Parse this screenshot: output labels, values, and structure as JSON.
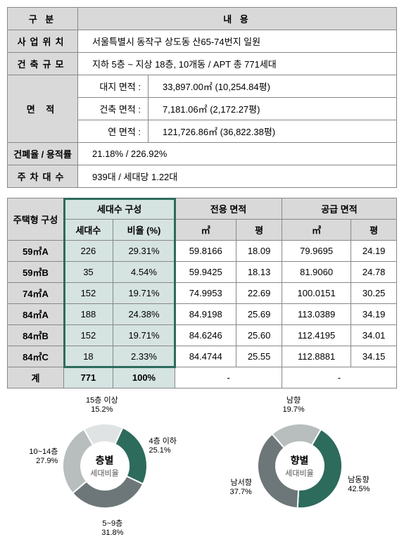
{
  "info": {
    "header_left": "구  분",
    "header_right": "내  용",
    "rows": {
      "r1_label": "사업위치",
      "r1_value": "서울특별시 동작구 상도동 산65-74번지 일원",
      "r2_label": "건축규모",
      "r2_value": "지하 5층 ~ 지상 18층, 10개동 / APT 총 771세대",
      "r3_label": "면    적",
      "r3a_sub": "대지 면적 :",
      "r3a_val": "33,897.00㎡    (10,254.84평)",
      "r3b_sub": "건축 면적 :",
      "r3b_val": "7,181.06㎡     (2,172.27평)",
      "r3c_sub": "연 면적 :",
      "r3c_val": "121,726.86㎡    (36,822.38평)",
      "r4_label": "건폐율 / 용적률",
      "r4_value": "21.18% / 226.92%",
      "r5_label": "주차대수",
      "r5_value": "939대 / 세대당 1.22대"
    }
  },
  "typeTable": {
    "title": "주택형\n구성",
    "headers": {
      "g1": "세대수 구성",
      "g2": "전용 면적",
      "g3": "공급 면적",
      "c1": "세대수",
      "c2": "비율 (%)",
      "c3": "㎡",
      "c4": "평",
      "c5": "㎡",
      "c6": "평"
    },
    "rows": [
      {
        "label": "59㎡A",
        "count": "226",
        "ratio": "29.31%",
        "em": "59.8166",
        "ep": "18.09",
        "sm": "79.9695",
        "sp": "24.19"
      },
      {
        "label": "59㎡B",
        "count": "35",
        "ratio": "4.54%",
        "em": "59.9425",
        "ep": "18.13",
        "sm": "81.9060",
        "sp": "24.78"
      },
      {
        "label": "74㎡A",
        "count": "152",
        "ratio": "19.71%",
        "em": "74.9953",
        "ep": "22.69",
        "sm": "100.0151",
        "sp": "30.25"
      },
      {
        "label": "84㎡A",
        "count": "188",
        "ratio": "24.38%",
        "em": "84.9198",
        "ep": "25.69",
        "sm": "113.0389",
        "sp": "34.19"
      },
      {
        "label": "84㎡B",
        "count": "152",
        "ratio": "19.71%",
        "em": "84.6246",
        "ep": "25.60",
        "sm": "112.4195",
        "sp": "34.01"
      },
      {
        "label": "84㎡C",
        "count": "18",
        "ratio": "2.33%",
        "em": "84.4744",
        "ep": "25.55",
        "sm": "112.8881",
        "sp": "34.15"
      }
    ],
    "totals": {
      "label": "계",
      "count": "771",
      "ratio": "100%",
      "dash": "-"
    }
  },
  "charts": {
    "floor": {
      "title": "층별",
      "sub": "세대비율",
      "segments": [
        {
          "label": "4층 이하",
          "value": 25.1,
          "color": "#2d6b5c",
          "labelText": "4층 이하\n25.1%"
        },
        {
          "label": "5~9층",
          "value": 31.8,
          "color": "#6d7679",
          "labelText": "5~9층\n31.8%"
        },
        {
          "label": "10~14층",
          "value": 27.9,
          "color": "#b8bdbe",
          "labelText": "10~14층\n27.9%"
        },
        {
          "label": "15층 이상",
          "value": 15.2,
          "color": "#e0e3e4",
          "labelText": "15층 이상\n15.2%"
        }
      ]
    },
    "direction": {
      "title": "향별",
      "sub": "세대비율",
      "segments": [
        {
          "label": "남동향",
          "value": 42.5,
          "color": "#2d6b5c",
          "labelText": "남동향\n42.5%"
        },
        {
          "label": "남서향",
          "value": 37.7,
          "color": "#6d7679",
          "labelText": "남서향\n37.7%"
        },
        {
          "label": "남향",
          "value": 19.7,
          "color": "#b8bdbe",
          "labelText": "남향\n19.7%"
        }
      ]
    }
  },
  "colors": {
    "header_bg": "#d9d9d9",
    "highlight_bg": "#d5e3e1",
    "highlight_border": "#2d6b5c",
    "border": "#888888"
  }
}
